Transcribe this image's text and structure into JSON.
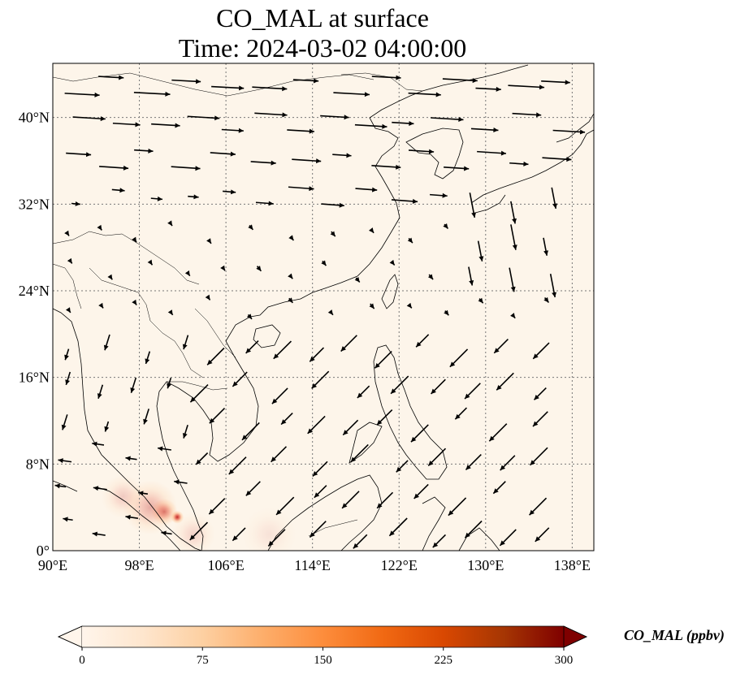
{
  "title": {
    "line1": "CO_MAL at surface",
    "line2": "Time: 2024-03-02 04:00:00"
  },
  "map": {
    "lon_range": [
      90,
      140
    ],
    "lat_range": [
      0,
      45
    ],
    "lon_ticks": [
      {
        "value": 90,
        "label": "90°E"
      },
      {
        "value": 98,
        "label": "98°E"
      },
      {
        "value": 106,
        "label": "106°E"
      },
      {
        "value": 114,
        "label": "114°E"
      },
      {
        "value": 122,
        "label": "122°E"
      },
      {
        "value": 130,
        "label": "130°E"
      },
      {
        "value": 138,
        "label": "138°E"
      }
    ],
    "lat_ticks": [
      {
        "value": 0,
        "label": "0°"
      },
      {
        "value": 8,
        "label": "8°N"
      },
      {
        "value": 16,
        "label": "16°N"
      },
      {
        "value": 24,
        "label": "24°N"
      },
      {
        "value": 32,
        "label": "32°N"
      },
      {
        "value": 40,
        "label": "40°N"
      }
    ],
    "grid": true,
    "background_color": "#fdf5ea",
    "hotspots": [
      {
        "lon": 101.5,
        "lat": 3.1,
        "intensity": 0.85,
        "radius_deg": 0.6
      },
      {
        "lon": 100.3,
        "lat": 3.6,
        "intensity": 0.55,
        "radius_deg": 1.2
      },
      {
        "lon": 99.0,
        "lat": 4.0,
        "intensity": 0.3,
        "radius_deg": 2.5
      },
      {
        "lon": 96.5,
        "lat": 5.0,
        "intensity": 0.18,
        "radius_deg": 2.0
      },
      {
        "lon": 103.0,
        "lat": 1.5,
        "intensity": 0.15,
        "radius_deg": 2.0
      },
      {
        "lon": 110.0,
        "lat": 1.5,
        "intensity": 0.08,
        "radius_deg": 2.5
      }
    ]
  },
  "colorbar": {
    "label": "CO_MAL (ppbv)",
    "min": 0,
    "max": 300,
    "ticks": [
      {
        "value": 0,
        "label": "0"
      },
      {
        "value": 75,
        "label": "75"
      },
      {
        "value": 150,
        "label": "150"
      },
      {
        "value": 225,
        "label": "225"
      },
      {
        "value": 300,
        "label": "300"
      }
    ],
    "colormap": [
      "#fff5eb",
      "#fee6ce",
      "#fdd0a2",
      "#fdae6b",
      "#fd8d3c",
      "#f16913",
      "#d94801",
      "#a63603",
      "#7f0000"
    ]
  }
}
